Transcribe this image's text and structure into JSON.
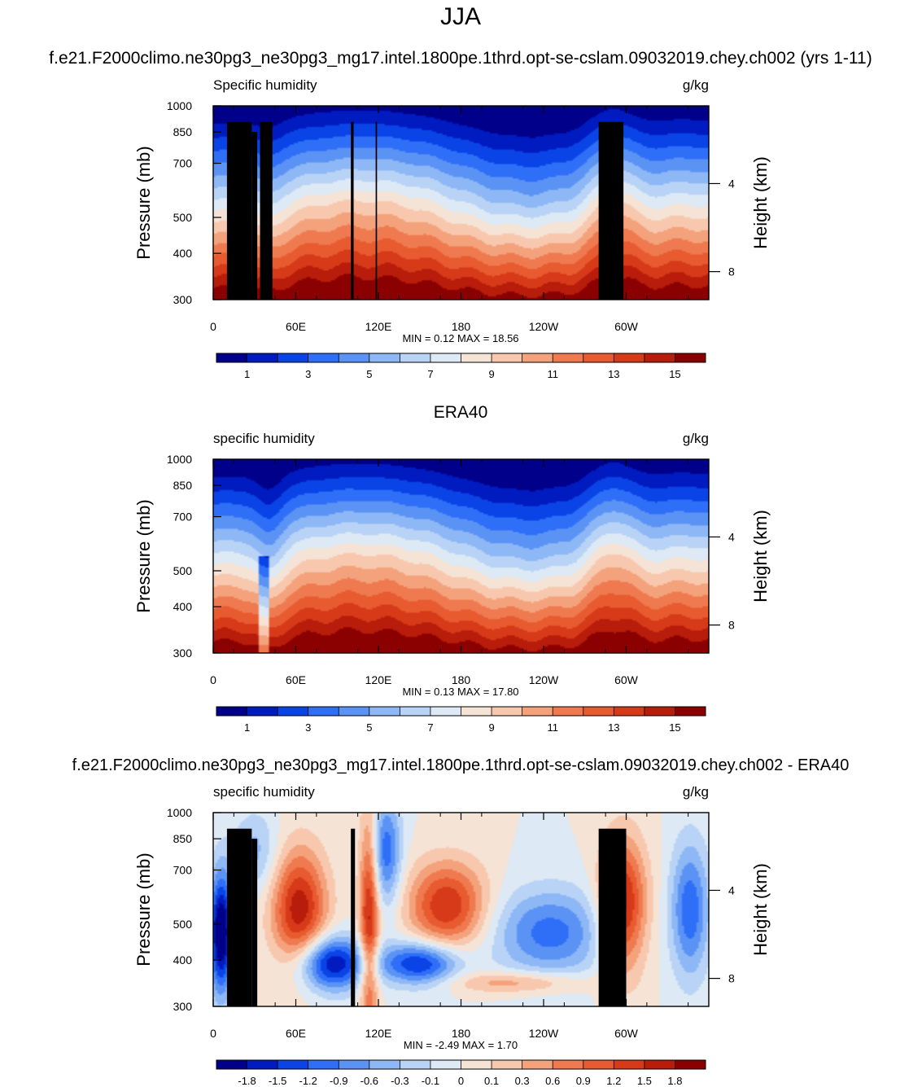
{
  "title": "JJA",
  "colors": {
    "plot_ramp": [
      "#00008a",
      "#001bbf",
      "#0a44e6",
      "#2f6ff7",
      "#5b93f5",
      "#8db7f5",
      "#b8d3f5",
      "#dde9f4",
      "#f5e3d6",
      "#f8c8ae",
      "#f4a27c",
      "#ef7a50",
      "#e85a30",
      "#d63a18",
      "#b81c0a",
      "#8b0000"
    ],
    "bar_min": "#00008a",
    "bar_max": "#8b0000",
    "terrain": "#000000"
  },
  "chart_data": [
    {
      "type": "heatmap",
      "title": "f.e21.F2000climo.ne30pg3_ne30pg3_mg17.intel.1800pe.1thrd.opt-se-cslam.09032019.chey.ch002 (yrs 1-11)",
      "left_label": "Specific humidity",
      "right_label": "g/kg",
      "ylabel": "Pressure (mb)",
      "ylabel_right": "Height (km)",
      "xticks": [
        "0",
        "60E",
        "120E",
        "180",
        "120W",
        "60W"
      ],
      "yticks": [
        "300",
        "400",
        "500",
        "700",
        "850",
        "1000"
      ],
      "yticks_right": [
        "8",
        "4"
      ],
      "stats": "MIN =   0.12  MAX =  18.56",
      "colorbar_labels": [
        "1",
        "3",
        "5",
        "7",
        "9",
        "11",
        "13",
        "15"
      ],
      "ylim": [
        1000,
        300
      ],
      "xlim": [
        0,
        360
      ],
      "terrain": [
        [
          10,
          905
        ],
        [
          28,
          850
        ],
        [
          34,
          905
        ],
        [
          100,
          905
        ],
        [
          118,
          905
        ],
        [
          280,
          905
        ]
      ]
    },
    {
      "type": "heatmap",
      "title": "ERA40",
      "left_label": "specific humidity",
      "right_label": "g/kg",
      "ylabel": "Pressure (mb)",
      "ylabel_right": "Height (km)",
      "xticks": [
        "0",
        "60E",
        "120E",
        "180",
        "120W",
        "60W"
      ],
      "yticks": [
        "300",
        "400",
        "500",
        "700",
        "850",
        "1000"
      ],
      "yticks_right": [
        "8",
        "4"
      ],
      "stats": "MIN =   0.13  MAX =  17.80",
      "colorbar_labels": [
        "1",
        "3",
        "5",
        "7",
        "9",
        "11",
        "13",
        "15"
      ],
      "ylim": [
        1000,
        300
      ],
      "xlim": [
        0,
        360
      ],
      "terrain": []
    },
    {
      "type": "heatmap",
      "title": "f.e21.F2000climo.ne30pg3_ne30pg3_mg17.intel.1800pe.1thrd.opt-se-cslam.09032019.chey.ch002 - ERA40",
      "left_label": "specific humidity",
      "right_label": "g/kg",
      "ylabel": "Pressure (mb)",
      "ylabel_right": "Height (km)",
      "xticks": [
        "0",
        "60E",
        "120E",
        "180",
        "120W",
        "60W"
      ],
      "yticks": [
        "300",
        "400",
        "500",
        "700",
        "850",
        "1000"
      ],
      "yticks_right": [
        "8",
        "4"
      ],
      "stats": "MIN =  -2.49  MAX =   1.70",
      "colorbar_labels": [
        "-1.8",
        "-1.5",
        "-1.2",
        "-0.9",
        "-0.6",
        "-0.3",
        "-0.1",
        "0",
        "0.1",
        "0.3",
        "0.6",
        "0.9",
        "1.2",
        "1.5",
        "1.8"
      ],
      "ylim": [
        1000,
        300
      ],
      "xlim": [
        0,
        360
      ],
      "terrain": [
        [
          10,
          905
        ],
        [
          28,
          850
        ],
        [
          100,
          905
        ],
        [
          280,
          905
        ]
      ]
    }
  ]
}
